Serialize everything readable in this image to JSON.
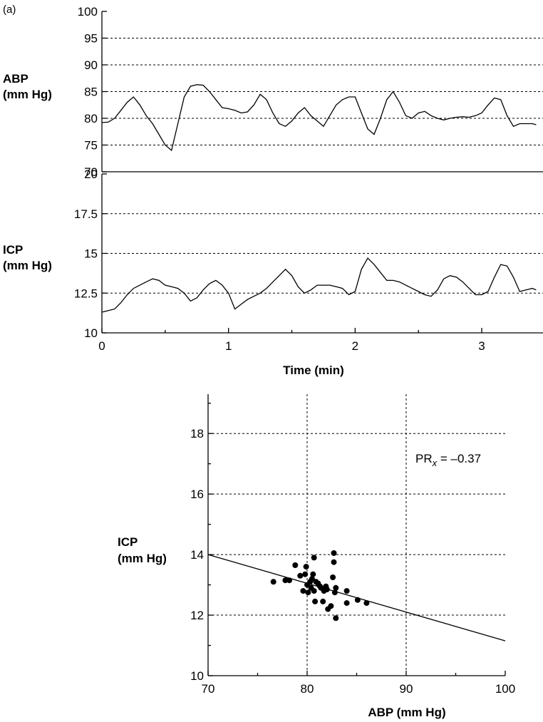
{
  "panel_label": "(a)",
  "chart_data": [
    {
      "type": "line",
      "name": "abp-trace",
      "ylabel_lines": [
        "ABP",
        "(mm Hg)"
      ],
      "ylim": [
        70,
        100
      ],
      "yticks": [
        70,
        75,
        80,
        85,
        90,
        95,
        100
      ],
      "xlim": [
        0,
        3.45
      ],
      "grid": "horizontal-dashed",
      "x": [
        0,
        0.05,
        0.1,
        0.15,
        0.2,
        0.25,
        0.3,
        0.35,
        0.4,
        0.45,
        0.5,
        0.55,
        0.6,
        0.65,
        0.7,
        0.75,
        0.8,
        0.85,
        0.9,
        0.95,
        1.0,
        1.05,
        1.1,
        1.15,
        1.2,
        1.25,
        1.3,
        1.35,
        1.4,
        1.45,
        1.5,
        1.55,
        1.6,
        1.65,
        1.7,
        1.75,
        1.8,
        1.85,
        1.9,
        1.95,
        2.0,
        2.05,
        2.1,
        2.15,
        2.2,
        2.25,
        2.3,
        2.35,
        2.4,
        2.45,
        2.5,
        2.55,
        2.6,
        2.65,
        2.7,
        2.75,
        2.8,
        2.85,
        2.9,
        2.95,
        3.0,
        3.05,
        3.1,
        3.15,
        3.2,
        3.25,
        3.3,
        3.35,
        3.4,
        3.43
      ],
      "values": [
        79.2,
        79.3,
        80.0,
        81.5,
        83.0,
        84.0,
        82.5,
        80.5,
        79.0,
        77.0,
        75.0,
        74.0,
        79.0,
        84.0,
        86.0,
        86.3,
        86.2,
        85.0,
        83.5,
        82.0,
        81.8,
        81.5,
        81.0,
        81.2,
        82.5,
        84.5,
        83.5,
        81.0,
        79.0,
        78.5,
        79.5,
        81.0,
        82.0,
        80.5,
        79.5,
        78.5,
        80.5,
        82.5,
        83.5,
        84.0,
        84.0,
        81.0,
        78.0,
        77.0,
        80.0,
        83.5,
        85.0,
        83.0,
        80.5,
        80.0,
        81.0,
        81.3,
        80.5,
        80.0,
        79.7,
        80.0,
        80.2,
        80.3,
        80.2,
        80.5,
        81.0,
        82.5,
        83.8,
        83.5,
        80.5,
        78.5,
        79.0,
        79.0,
        79.0,
        78.8
      ]
    },
    {
      "type": "line",
      "name": "icp-trace",
      "ylabel_lines": [
        "ICP",
        "(mm Hg)"
      ],
      "ylim": [
        10,
        20
      ],
      "yticks": [
        10,
        12.5,
        15,
        17.5,
        20
      ],
      "ytick_labels": [
        "10",
        "12.5",
        "15",
        "17.5",
        "20"
      ],
      "xlim": [
        0,
        3.45
      ],
      "xticks": [
        0,
        1,
        2,
        3
      ],
      "xlabel": "Time (min)",
      "grid": "horizontal-dashed",
      "x": [
        0,
        0.05,
        0.1,
        0.15,
        0.2,
        0.25,
        0.3,
        0.35,
        0.4,
        0.45,
        0.5,
        0.55,
        0.6,
        0.65,
        0.7,
        0.75,
        0.8,
        0.85,
        0.9,
        0.95,
        1.0,
        1.05,
        1.1,
        1.15,
        1.2,
        1.25,
        1.3,
        1.35,
        1.4,
        1.45,
        1.5,
        1.55,
        1.6,
        1.65,
        1.7,
        1.75,
        1.8,
        1.85,
        1.9,
        1.95,
        2.0,
        2.05,
        2.1,
        2.15,
        2.2,
        2.25,
        2.3,
        2.35,
        2.4,
        2.45,
        2.5,
        2.55,
        2.6,
        2.65,
        2.7,
        2.75,
        2.8,
        2.85,
        2.9,
        2.95,
        3.0,
        3.05,
        3.1,
        3.15,
        3.2,
        3.25,
        3.3,
        3.35,
        3.4,
        3.43
      ],
      "values": [
        11.3,
        11.4,
        11.5,
        11.9,
        12.4,
        12.8,
        13.0,
        13.2,
        13.4,
        13.3,
        13.0,
        12.9,
        12.8,
        12.5,
        12.0,
        12.2,
        12.7,
        13.1,
        13.3,
        13.0,
        12.5,
        11.5,
        11.8,
        12.1,
        12.3,
        12.5,
        12.8,
        13.2,
        13.6,
        14.0,
        13.6,
        12.9,
        12.5,
        12.7,
        13.0,
        13.0,
        13.0,
        12.9,
        12.8,
        12.4,
        12.6,
        14.0,
        14.7,
        14.3,
        13.8,
        13.3,
        13.3,
        13.2,
        13.0,
        12.8,
        12.6,
        12.4,
        12.3,
        12.7,
        13.4,
        13.6,
        13.5,
        13.2,
        12.8,
        12.4,
        12.4,
        12.6,
        13.5,
        14.3,
        14.2,
        13.5,
        12.6,
        12.7,
        12.8,
        12.7
      ]
    },
    {
      "type": "scatter",
      "name": "icp-vs-abp",
      "xlabel": "ABP (mm Hg)",
      "ylabel_lines": [
        "ICP",
        "(mm Hg)"
      ],
      "xlim": [
        70,
        100
      ],
      "ylim": [
        10,
        19.3
      ],
      "xticks": [
        70,
        80,
        90,
        100
      ],
      "yticks": [
        10,
        12,
        14,
        16,
        18
      ],
      "annotation": {
        "base": "PR",
        "subscript": "x",
        "text": " = –0.37"
      },
      "regression_line": {
        "x": [
          70,
          100
        ],
        "y": [
          14.0,
          11.15
        ]
      },
      "points": [
        {
          "x": 76.6,
          "y": 13.1
        },
        {
          "x": 77.8,
          "y": 13.15
        },
        {
          "x": 78.2,
          "y": 13.15
        },
        {
          "x": 78.8,
          "y": 13.65
        },
        {
          "x": 79.3,
          "y": 13.3
        },
        {
          "x": 79.6,
          "y": 12.8
        },
        {
          "x": 79.8,
          "y": 13.35
        },
        {
          "x": 79.9,
          "y": 13.6
        },
        {
          "x": 80.0,
          "y": 13.0
        },
        {
          "x": 80.1,
          "y": 12.75
        },
        {
          "x": 80.3,
          "y": 13.1
        },
        {
          "x": 80.4,
          "y": 12.9
        },
        {
          "x": 80.5,
          "y": 13.2
        },
        {
          "x": 80.6,
          "y": 13.35
        },
        {
          "x": 80.7,
          "y": 12.8
        },
        {
          "x": 80.7,
          "y": 13.9
        },
        {
          "x": 80.8,
          "y": 12.45
        },
        {
          "x": 80.9,
          "y": 13.1
        },
        {
          "x": 81.1,
          "y": 13.05
        },
        {
          "x": 81.3,
          "y": 12.95
        },
        {
          "x": 81.4,
          "y": 12.9
        },
        {
          "x": 81.6,
          "y": 12.45
        },
        {
          "x": 81.7,
          "y": 12.8
        },
        {
          "x": 81.9,
          "y": 12.95
        },
        {
          "x": 82.0,
          "y": 12.85
        },
        {
          "x": 82.1,
          "y": 12.2
        },
        {
          "x": 82.4,
          "y": 12.3
        },
        {
          "x": 82.6,
          "y": 13.25
        },
        {
          "x": 82.7,
          "y": 13.75
        },
        {
          "x": 82.7,
          "y": 14.05
        },
        {
          "x": 82.8,
          "y": 12.75
        },
        {
          "x": 82.9,
          "y": 12.9
        },
        {
          "x": 82.9,
          "y": 11.9
        },
        {
          "x": 84.0,
          "y": 12.8
        },
        {
          "x": 84.0,
          "y": 12.4
        },
        {
          "x": 85.1,
          "y": 12.5
        },
        {
          "x": 86.0,
          "y": 12.4
        }
      ]
    }
  ]
}
